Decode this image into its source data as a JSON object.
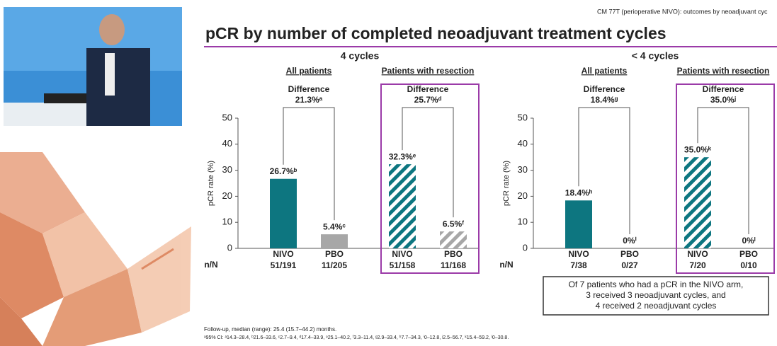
{
  "slide": {
    "header": "CM 77T (perioperative NIVO): outcomes by neoadjuvant cyc",
    "title": "pCR by number of completed neoadjuvant treatment cycles",
    "footnotes": [
      "Follow-up, median (range): 25.4 (15.7–44.2) months.",
      "ᵃ95% CI: ᵃ14.3–28.4, ᵇ21.6–33.6, ᶜ2.7–9.4, ᵈ17.4–33.9, ᵉ25.1–40.2, ᶠ3.3–11.4, ᵍ2.9–33.4, ʰ7.7–34.3, ⁱ0–12.8, ʲ2.5–56.7, ᵏ15.4–59.2, ˡ0–30.8."
    ]
  },
  "chart_data": [
    {
      "type": "bar",
      "title": "4 cycles",
      "y_label": "pCR rate (%)",
      "ylim": [
        0,
        50
      ],
      "yticks": [
        0,
        10,
        20,
        30,
        40,
        50
      ],
      "count_label": "n/N",
      "categories": [
        "NIVO",
        "PBO",
        "NIVO",
        "PBO"
      ],
      "counts": [
        "51/191",
        "11/205",
        "51/158",
        "11/168"
      ],
      "values": [
        26.7,
        5.4,
        32.3,
        6.5
      ],
      "value_labels": [
        "26.7%ᵇ",
        "5.4%ᶜ",
        "32.3%ᵉ",
        "6.5%ᶠ"
      ],
      "colors": [
        "#0d7680",
        "#a7a7a7",
        "#0d7680",
        "#a7a7a7"
      ],
      "hatched": [
        false,
        false,
        true,
        true
      ],
      "groups": [
        {
          "name": "All patients",
          "difference_title": "Difference",
          "difference": "21.3%ᵃ",
          "boxed": false
        },
        {
          "name": "Patients with resection",
          "difference_title": "Difference",
          "difference": "25.7%ᵈ",
          "boxed": true
        }
      ]
    },
    {
      "type": "bar",
      "title": "< 4 cycles",
      "y_label": "pCR rate (%)",
      "ylim": [
        0,
        50
      ],
      "yticks": [
        0,
        10,
        20,
        30,
        40,
        50
      ],
      "count_label": "n/N",
      "categories": [
        "NIVO",
        "PBO",
        "NIVO",
        "PBO"
      ],
      "counts": [
        "7/38",
        "0/27",
        "7/20",
        "0/10"
      ],
      "values": [
        18.4,
        0,
        35.0,
        0
      ],
      "value_labels": [
        "18.4%ʰ",
        "0%ⁱ",
        "35.0%ᵏ",
        "0%ˡ"
      ],
      "colors": [
        "#0d7680",
        "#a7a7a7",
        "#0d7680",
        "#a7a7a7"
      ],
      "hatched": [
        false,
        false,
        true,
        true
      ],
      "groups": [
        {
          "name": "All patients",
          "difference_title": "Difference",
          "difference": "18.4%ᵍ",
          "boxed": false
        },
        {
          "name": "Patients with resection",
          "difference_title": "Difference",
          "difference": "35.0%ʲ",
          "boxed": true
        }
      ],
      "note": [
        "Of 7 patients who had a pCR in the NIVO arm,",
        "3 received 3 neoadjuvant cycles, and",
        "4 received 2 neoadjuvant cycles"
      ]
    }
  ]
}
